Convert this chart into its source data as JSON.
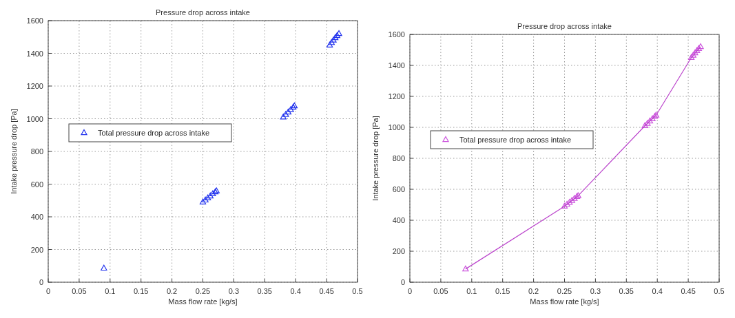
{
  "chart_data": [
    {
      "type": "scatter",
      "title": "Pressure drop across intake",
      "xlabel": "Mass flow rate [kg/s]",
      "ylabel": "Intake pressure drop [Pa]",
      "xlim": [
        0,
        0.5
      ],
      "ylim": [
        0,
        1600
      ],
      "xticks": [
        0,
        0.05,
        0.1,
        0.15,
        0.2,
        0.25,
        0.3,
        0.35,
        0.4,
        0.45,
        0.5
      ],
      "yticks": [
        0,
        200,
        400,
        600,
        800,
        1000,
        1200,
        1400,
        1600
      ],
      "grid": true,
      "legend": "left",
      "marker": "triangle",
      "series": [
        {
          "name": "Total pressure drop across intake",
          "color": "#2233ee",
          "x": [
            0.09,
            0.25,
            0.254,
            0.258,
            0.262,
            0.266,
            0.27,
            0.272,
            0.38,
            0.384,
            0.388,
            0.392,
            0.396,
            0.398,
            0.455,
            0.458,
            0.461,
            0.464,
            0.467,
            0.47
          ],
          "values": [
            85,
            490,
            502,
            515,
            527,
            540,
            552,
            558,
            1010,
            1025,
            1040,
            1055,
            1070,
            1078,
            1450,
            1465,
            1480,
            1495,
            1508,
            1520
          ]
        }
      ]
    },
    {
      "type": "scatter",
      "title": "Pressure drop across intake",
      "xlabel": "Mass flow rate [kg/s]",
      "ylabel": "Intake pressure drop [Pa]",
      "xlim": [
        0,
        0.5
      ],
      "ylim": [
        0,
        1600
      ],
      "xticks": [
        0,
        0.05,
        0.1,
        0.15,
        0.2,
        0.25,
        0.3,
        0.35,
        0.4,
        0.45,
        0.5
      ],
      "yticks": [
        0,
        200,
        400,
        600,
        800,
        1000,
        1200,
        1400,
        1600
      ],
      "grid": true,
      "legend": "left",
      "marker": "triangle",
      "series": [
        {
          "name": "Total pressure drop across intake",
          "color": "#cc55dd",
          "x": [
            0.09,
            0.25,
            0.254,
            0.258,
            0.262,
            0.266,
            0.27,
            0.272,
            0.38,
            0.384,
            0.388,
            0.392,
            0.396,
            0.398,
            0.455,
            0.458,
            0.461,
            0.464,
            0.467,
            0.47
          ],
          "values": [
            85,
            490,
            502,
            515,
            527,
            540,
            552,
            558,
            1010,
            1025,
            1040,
            1055,
            1070,
            1078,
            1450,
            1465,
            1480,
            1495,
            1508,
            1520
          ]
        },
        {
          "type": "line",
          "color": "#bb44cc",
          "marker": "none",
          "x": [
            0.09,
            0.25,
            0.272,
            0.38,
            0.398,
            0.455,
            0.47
          ],
          "values": [
            85,
            490,
            558,
            1010,
            1078,
            1450,
            1520
          ]
        }
      ]
    }
  ]
}
